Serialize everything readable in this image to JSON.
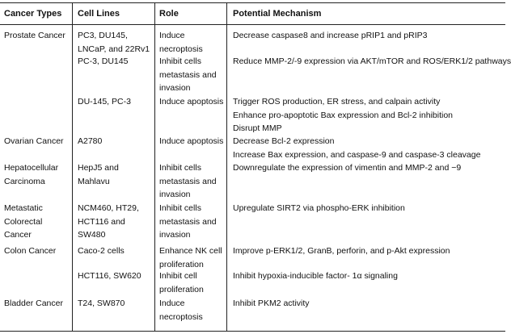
{
  "headers": [
    "Cancer Types",
    "Cell Lines",
    "Role",
    "Potential Mechanism"
  ],
  "rows": [
    {
      "cancer": [
        "Prostate Cancer"
      ],
      "cells": [
        "PC3, DU145,",
        "LNCaP, and 22Rv1"
      ],
      "role": [
        "Induce",
        "necroptosis"
      ],
      "mech": [
        "Decrease caspase8 and increase pRIP1 and pRIP3"
      ]
    },
    {
      "cancer": [],
      "cells": [
        "PC-3, DU145"
      ],
      "role": [
        "Inhibit cells",
        "metastasis and",
        "invasion"
      ],
      "mech": [
        "Reduce MMP-2/-9 expression via AKT/mTOR and ROS/ERK1/2 pathways"
      ]
    },
    {
      "cancer": [],
      "cells": [
        "DU-145, PC-3"
      ],
      "role": [
        "Induce apoptosis"
      ],
      "mech": [
        "Trigger ROS production, ER stress, and calpain activity",
        "Enhance pro-apoptotic Bax expression and Bcl-2 inhibition",
        "Disrupt MMP"
      ]
    },
    {
      "cancer": [
        "Ovarian Cancer"
      ],
      "cells": [
        "A2780"
      ],
      "role": [
        "Induce apoptosis"
      ],
      "mech": [
        "Decrease Bcl-2 expression",
        "Increase Bax expression, and caspase-9 and caspase-3 cleavage"
      ]
    },
    {
      "cancer": [
        "Hepatocellular",
        "Carcinoma"
      ],
      "cells": [
        "HepJ5 and",
        "Mahlavu"
      ],
      "role": [
        "Inhibit cells",
        "metastasis and",
        "invasion"
      ],
      "mech": [
        "Downregulate the expression of vimentin and MMP-2 and −9"
      ]
    },
    {
      "cancer": [
        "Metastatic",
        "Colorectal",
        "Cancer"
      ],
      "cells": [
        "NCM460, HT29,",
        "HCT116 and",
        "SW480"
      ],
      "role": [
        "Inhibit cells",
        "metastasis and",
        "invasion"
      ],
      "mech": [
        "Upregulate SIRT2 via phospho-ERK inhibition"
      ]
    },
    {
      "cancer": [
        "Colon Cancer"
      ],
      "cells": [
        "Caco-2 cells"
      ],
      "role": [
        "Enhance NK cell",
        "proliferation"
      ],
      "mech": [
        "Improve p-ERK1/2, GranB, perforin, and p-Akt expression"
      ]
    },
    {
      "cancer": [],
      "cells": [
        "HCT116, SW620"
      ],
      "role": [
        "Inhibit cell",
        "proliferation"
      ],
      "mech": [
        "Inhibit hypoxia-inducible factor- 1α signaling"
      ]
    },
    {
      "cancer": [
        "Bladder Cancer"
      ],
      "cells": [
        "T24, SW870"
      ],
      "role": [
        "Induce",
        "necroptosis"
      ],
      "mech": [
        "Inhibit PKM2 activity"
      ]
    }
  ]
}
